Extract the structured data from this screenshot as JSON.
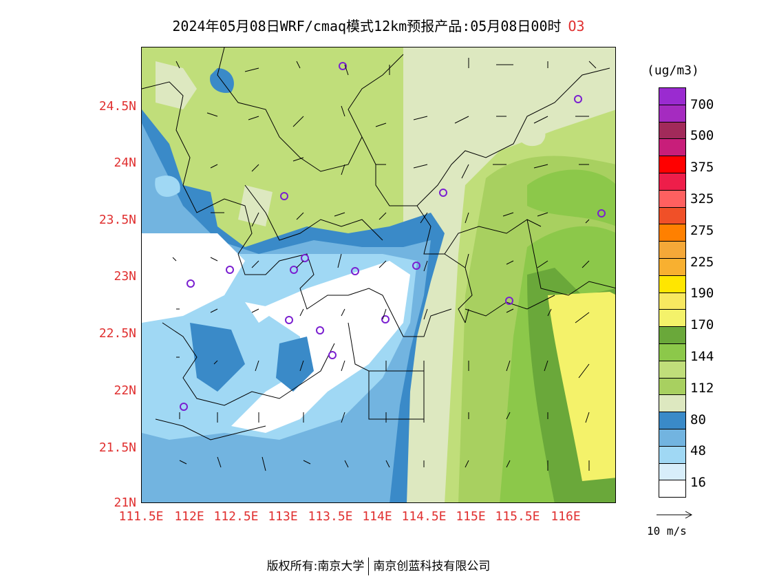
{
  "title": {
    "text": "2024年05月08日WRF/cmaq模式12km预报产品:05月08日00时",
    "species": "O3"
  },
  "map": {
    "lat_labels": [
      "24.5N",
      "24N",
      "23.5N",
      "23N",
      "22.5N",
      "22N",
      "21.5N",
      "21N"
    ],
    "lon_labels": [
      "111.5E",
      "112E",
      "112.5E",
      "113E",
      "113.5E",
      "114E",
      "114.5E",
      "115E",
      "115.5E",
      "116E"
    ]
  },
  "colorbar": {
    "unit": "(ug/m3)",
    "colors": [
      "#9a2bd0",
      "#a52bc0",
      "#a22a5a",
      "#c81e7a",
      "#ff0000",
      "#ee1e4a",
      "#ff6060",
      "#f05028",
      "#ff8000",
      "#f5a838",
      "#f8b030",
      "#ffe600",
      "#f8e860",
      "#f4f26a",
      "#6aa83a",
      "#8cc84a",
      "#c0de7a",
      "#a8d060",
      "#dde8c0",
      "#3a8ac8",
      "#72b4e0",
      "#a0d8f4",
      "#d8eefa",
      "#ffffff"
    ],
    "labels": [
      "700",
      "500",
      "375",
      "325",
      "275",
      "225",
      "190",
      "170",
      "144",
      "112",
      "80",
      "48",
      "16"
    ]
  },
  "vector_reference": {
    "label": "10 m/s"
  },
  "footer": {
    "copyright_label": "版权所有:",
    "org1": "南京大学",
    "org2": "南京创蓝科技有限公司"
  }
}
